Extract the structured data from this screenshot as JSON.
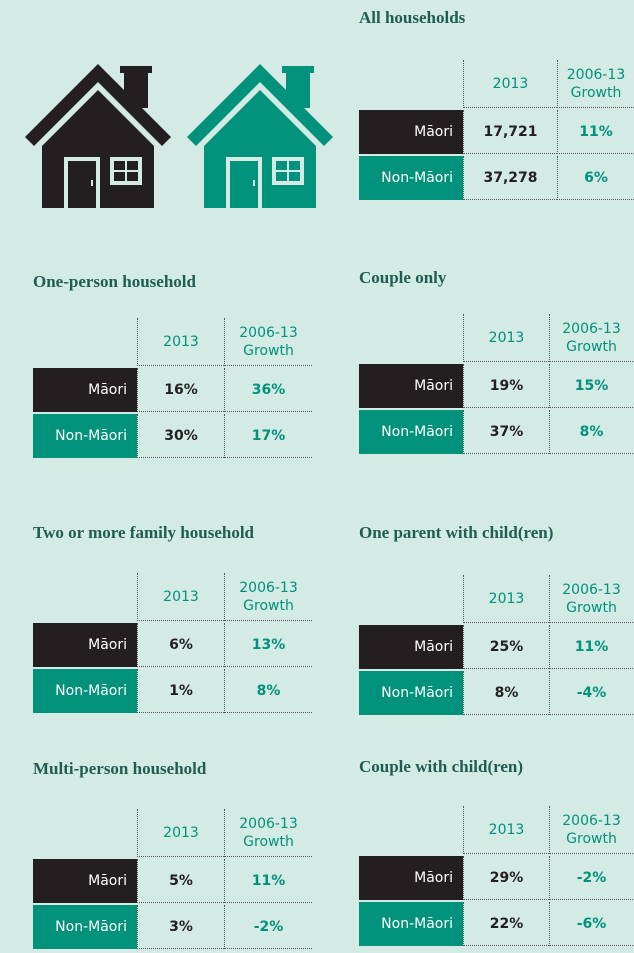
{
  "sections": [
    {
      "title": "All households",
      "header": [
        "2013",
        "2006-13 Growth"
      ],
      "rows": [
        [
          "Māori",
          "17,721",
          "11%"
        ],
        [
          "Non-Māori",
          "37,278",
          "6%"
        ]
      ]
    },
    {
      "title": "One-person household",
      "header": [
        "2013",
        "2006-13 Growth"
      ],
      "rows": [
        [
          "Māori",
          "16%",
          "36%"
        ],
        [
          "Non-Māori",
          "30%",
          "17%"
        ]
      ]
    },
    {
      "title": "Couple only",
      "header": [
        "2013",
        "2006-13 Growth"
      ],
      "rows": [
        [
          "Māori",
          "19%",
          "15%"
        ],
        [
          "Non-Māori",
          "37%",
          "8%"
        ]
      ]
    },
    {
      "title": "Two or more family household",
      "header": [
        "2013",
        "2006-13 Growth"
      ],
      "rows": [
        [
          "Māori",
          "6%",
          "13%"
        ],
        [
          "Non-Māori",
          "1%",
          "8%"
        ]
      ]
    },
    {
      "title": "One parent with child(ren)",
      "header": [
        "2013",
        "2006-13 Growth"
      ],
      "rows": [
        [
          "Māori",
          "25%",
          "11%"
        ],
        [
          "Non-Māori",
          "8%",
          "-4%"
        ]
      ]
    },
    {
      "title": "Multi-person household",
      "header": [
        "2013",
        "2006-13 Growth"
      ],
      "rows": [
        [
          "Māori",
          "5%",
          "11%"
        ],
        [
          "Non-Māori",
          "3%",
          "-2%"
        ]
      ]
    },
    {
      "title": "Couple with child(ren)",
      "header": [
        "2013",
        "2006-13 Growth"
      ],
      "rows": [
        [
          "Māori",
          "29%",
          "-2%"
        ],
        [
          "Non-Māori",
          "22%",
          "-6%"
        ]
      ]
    }
  ]
}
